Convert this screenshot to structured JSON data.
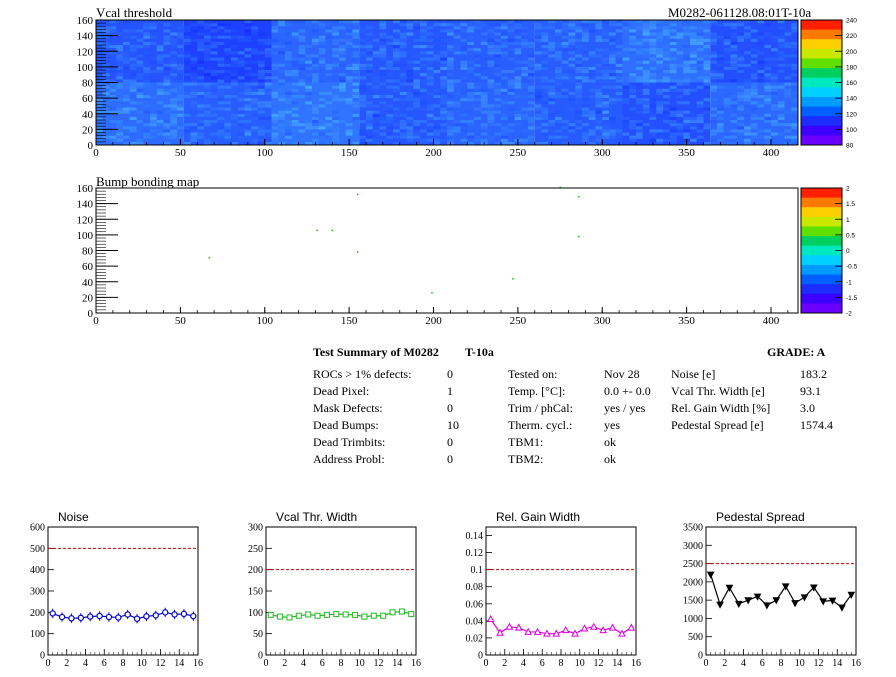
{
  "header": {
    "title": "Vcal threshold",
    "module_id": "M0282-061128.08:01T-10a"
  },
  "bump_title": "Bump bonding map",
  "summary": {
    "title": "Test Summary of M0282",
    "test": "T-10a",
    "grade": "GRADE:  A",
    "col1": [
      {
        "label": "ROCs > 1% defects:",
        "value": "0"
      },
      {
        "label": "Dead Pixel:",
        "value": "1"
      },
      {
        "label": "Mask Defects:",
        "value": "0"
      },
      {
        "label": "Dead Bumps:",
        "value": "10"
      },
      {
        "label": "Dead Trimbits:",
        "value": "0"
      },
      {
        "label": "Address Probl:",
        "value": "0"
      }
    ],
    "col2": [
      {
        "label": "Tested on:",
        "value": "Nov 28"
      },
      {
        "label": "Temp. [°C]:",
        "value": "0.0 +- 0.0"
      },
      {
        "label": "Trim / phCal:",
        "value": "yes / yes"
      },
      {
        "label": "Therm. cycl.:",
        "value": "yes"
      },
      {
        "label": "TBM1:",
        "value": "ok"
      },
      {
        "label": "TBM2:",
        "value": "ok"
      }
    ],
    "col3": [
      {
        "label": "Noise [e]",
        "value": "183.2"
      },
      {
        "label": "Vcal Thr. Width [e]",
        "value": "93.1"
      },
      {
        "label": "Rel. Gain Width [%]",
        "value": "3.0"
      },
      {
        "label": "Pedestal Spread [e]",
        "value": "1574.4"
      }
    ]
  },
  "chart_data": [
    {
      "type": "heatmap",
      "title": "Vcal threshold",
      "xlim": [
        0,
        416
      ],
      "ylim": [
        0,
        160
      ],
      "x_ticks": [
        0,
        50,
        100,
        150,
        200,
        250,
        300,
        350,
        400
      ],
      "y_ticks": [
        0,
        20,
        40,
        60,
        80,
        100,
        120,
        140,
        160
      ],
      "roc_grid": {
        "columns": 8,
        "rows": 2,
        "roc_width": 52,
        "roc_height": 80
      },
      "roc_mean_values": {
        "top_row": [
          95,
          84,
          104,
          96,
          100,
          100,
          110,
          92
        ],
        "bottom_row": [
          108,
          100,
          112,
          96,
          103,
          98,
          92,
          106
        ]
      },
      "colorbar": {
        "min": 80,
        "max": 240,
        "ticks": [
          80,
          100,
          120,
          140,
          160,
          180,
          200,
          220,
          240
        ]
      },
      "colors": [
        "#6a00ff",
        "#3c00ff",
        "#1d2dff",
        "#0060ff",
        "#009bff",
        "#00d0ff",
        "#00e8c0",
        "#00d060",
        "#60e000",
        "#c8e800",
        "#ffd000",
        "#ff7a00",
        "#ff2000"
      ]
    },
    {
      "type": "scatter",
      "title": "Bump bonding map",
      "xlim": [
        0,
        416
      ],
      "ylim": [
        0,
        160
      ],
      "x_ticks": [
        0,
        50,
        100,
        150,
        200,
        250,
        300,
        350,
        400
      ],
      "y_ticks": [
        0,
        20,
        40,
        60,
        80,
        100,
        120,
        140,
        160
      ],
      "points": [
        {
          "x": 67,
          "y": 71
        },
        {
          "x": 131,
          "y": 106
        },
        {
          "x": 140,
          "y": 106
        },
        {
          "x": 155,
          "y": 78
        },
        {
          "x": 155,
          "y": 152
        },
        {
          "x": 199,
          "y": 26
        },
        {
          "x": 247,
          "y": 44
        },
        {
          "x": 275,
          "y": 161
        },
        {
          "x": 286,
          "y": 149
        },
        {
          "x": 286,
          "y": 98
        }
      ],
      "point_color": "#00c800",
      "colorbar": {
        "min": -2,
        "max": 2,
        "ticks": [
          "2",
          "1.5",
          "1",
          "0.5",
          "0",
          "-0.5",
          "-1",
          "-1.5",
          "-2"
        ]
      }
    },
    {
      "type": "line",
      "title": "Noise",
      "x": [
        0,
        1,
        2,
        3,
        4,
        5,
        6,
        7,
        8,
        9,
        10,
        11,
        12,
        13,
        14,
        15
      ],
      "values": [
        195,
        178,
        172,
        174,
        180,
        183,
        178,
        176,
        190,
        170,
        181,
        186,
        200,
        190,
        193,
        182
      ],
      "errors": [
        22,
        22,
        22,
        22,
        22,
        22,
        22,
        22,
        22,
        22,
        22,
        22,
        22,
        22,
        22,
        22
      ],
      "ylim": [
        0,
        600
      ],
      "y_ticks": [
        0,
        100,
        200,
        300,
        400,
        500,
        600
      ],
      "xlim": [
        0,
        16
      ],
      "x_ticks": [
        0,
        2,
        4,
        6,
        8,
        10,
        12,
        14,
        16
      ],
      "limit": 500,
      "color": "#0000cc",
      "marker": "circle"
    },
    {
      "type": "line",
      "title": "Vcal Thr. Width",
      "x": [
        0,
        1,
        2,
        3,
        4,
        5,
        6,
        7,
        8,
        9,
        10,
        11,
        12,
        13,
        14,
        15
      ],
      "values": [
        94,
        90,
        88,
        92,
        95,
        92,
        94,
        96,
        95,
        94,
        90,
        92,
        92,
        100,
        102,
        96
      ],
      "ylim": [
        0,
        300
      ],
      "y_ticks": [
        0,
        50,
        100,
        150,
        200,
        250,
        300
      ],
      "xlim": [
        0,
        16
      ],
      "x_ticks": [
        0,
        2,
        4,
        6,
        8,
        10,
        12,
        14,
        16
      ],
      "limit": 200,
      "color": "#22bb22",
      "marker": "square"
    },
    {
      "type": "line",
      "title": "Rel. Gain Width",
      "x": [
        0,
        1,
        2,
        3,
        4,
        5,
        6,
        7,
        8,
        9,
        10,
        11,
        12,
        13,
        14,
        15
      ],
      "values": [
        0.042,
        0.026,
        0.033,
        0.032,
        0.027,
        0.027,
        0.025,
        0.025,
        0.029,
        0.025,
        0.031,
        0.033,
        0.029,
        0.032,
        0.025,
        0.032
      ],
      "ylim": [
        0,
        0.15
      ],
      "y_ticks": [
        0,
        0.02,
        0.04,
        0.06,
        0.08,
        0.1,
        0.12,
        0.14
      ],
      "xlim": [
        0,
        16
      ],
      "x_ticks": [
        0,
        2,
        4,
        6,
        8,
        10,
        12,
        14,
        16
      ],
      "limit": 0.1,
      "color": "#dd00dd",
      "marker": "triangle"
    },
    {
      "type": "line",
      "title": "Pedestal Spread",
      "x": [
        0,
        1,
        2,
        3,
        4,
        5,
        6,
        7,
        8,
        9,
        10,
        11,
        12,
        13,
        14,
        15
      ],
      "values": [
        2200,
        1380,
        1840,
        1400,
        1500,
        1600,
        1360,
        1500,
        1880,
        1420,
        1580,
        1850,
        1470,
        1490,
        1300,
        1650
      ],
      "ylim": [
        0,
        3500
      ],
      "y_ticks": [
        0,
        500,
        1000,
        1500,
        2000,
        2500,
        3000,
        3500
      ],
      "xlim": [
        0,
        16
      ],
      "x_ticks": [
        0,
        2,
        4,
        6,
        8,
        10,
        12,
        14,
        16
      ],
      "limit": 2500,
      "color": "#000000",
      "marker": "triangle-down"
    }
  ]
}
